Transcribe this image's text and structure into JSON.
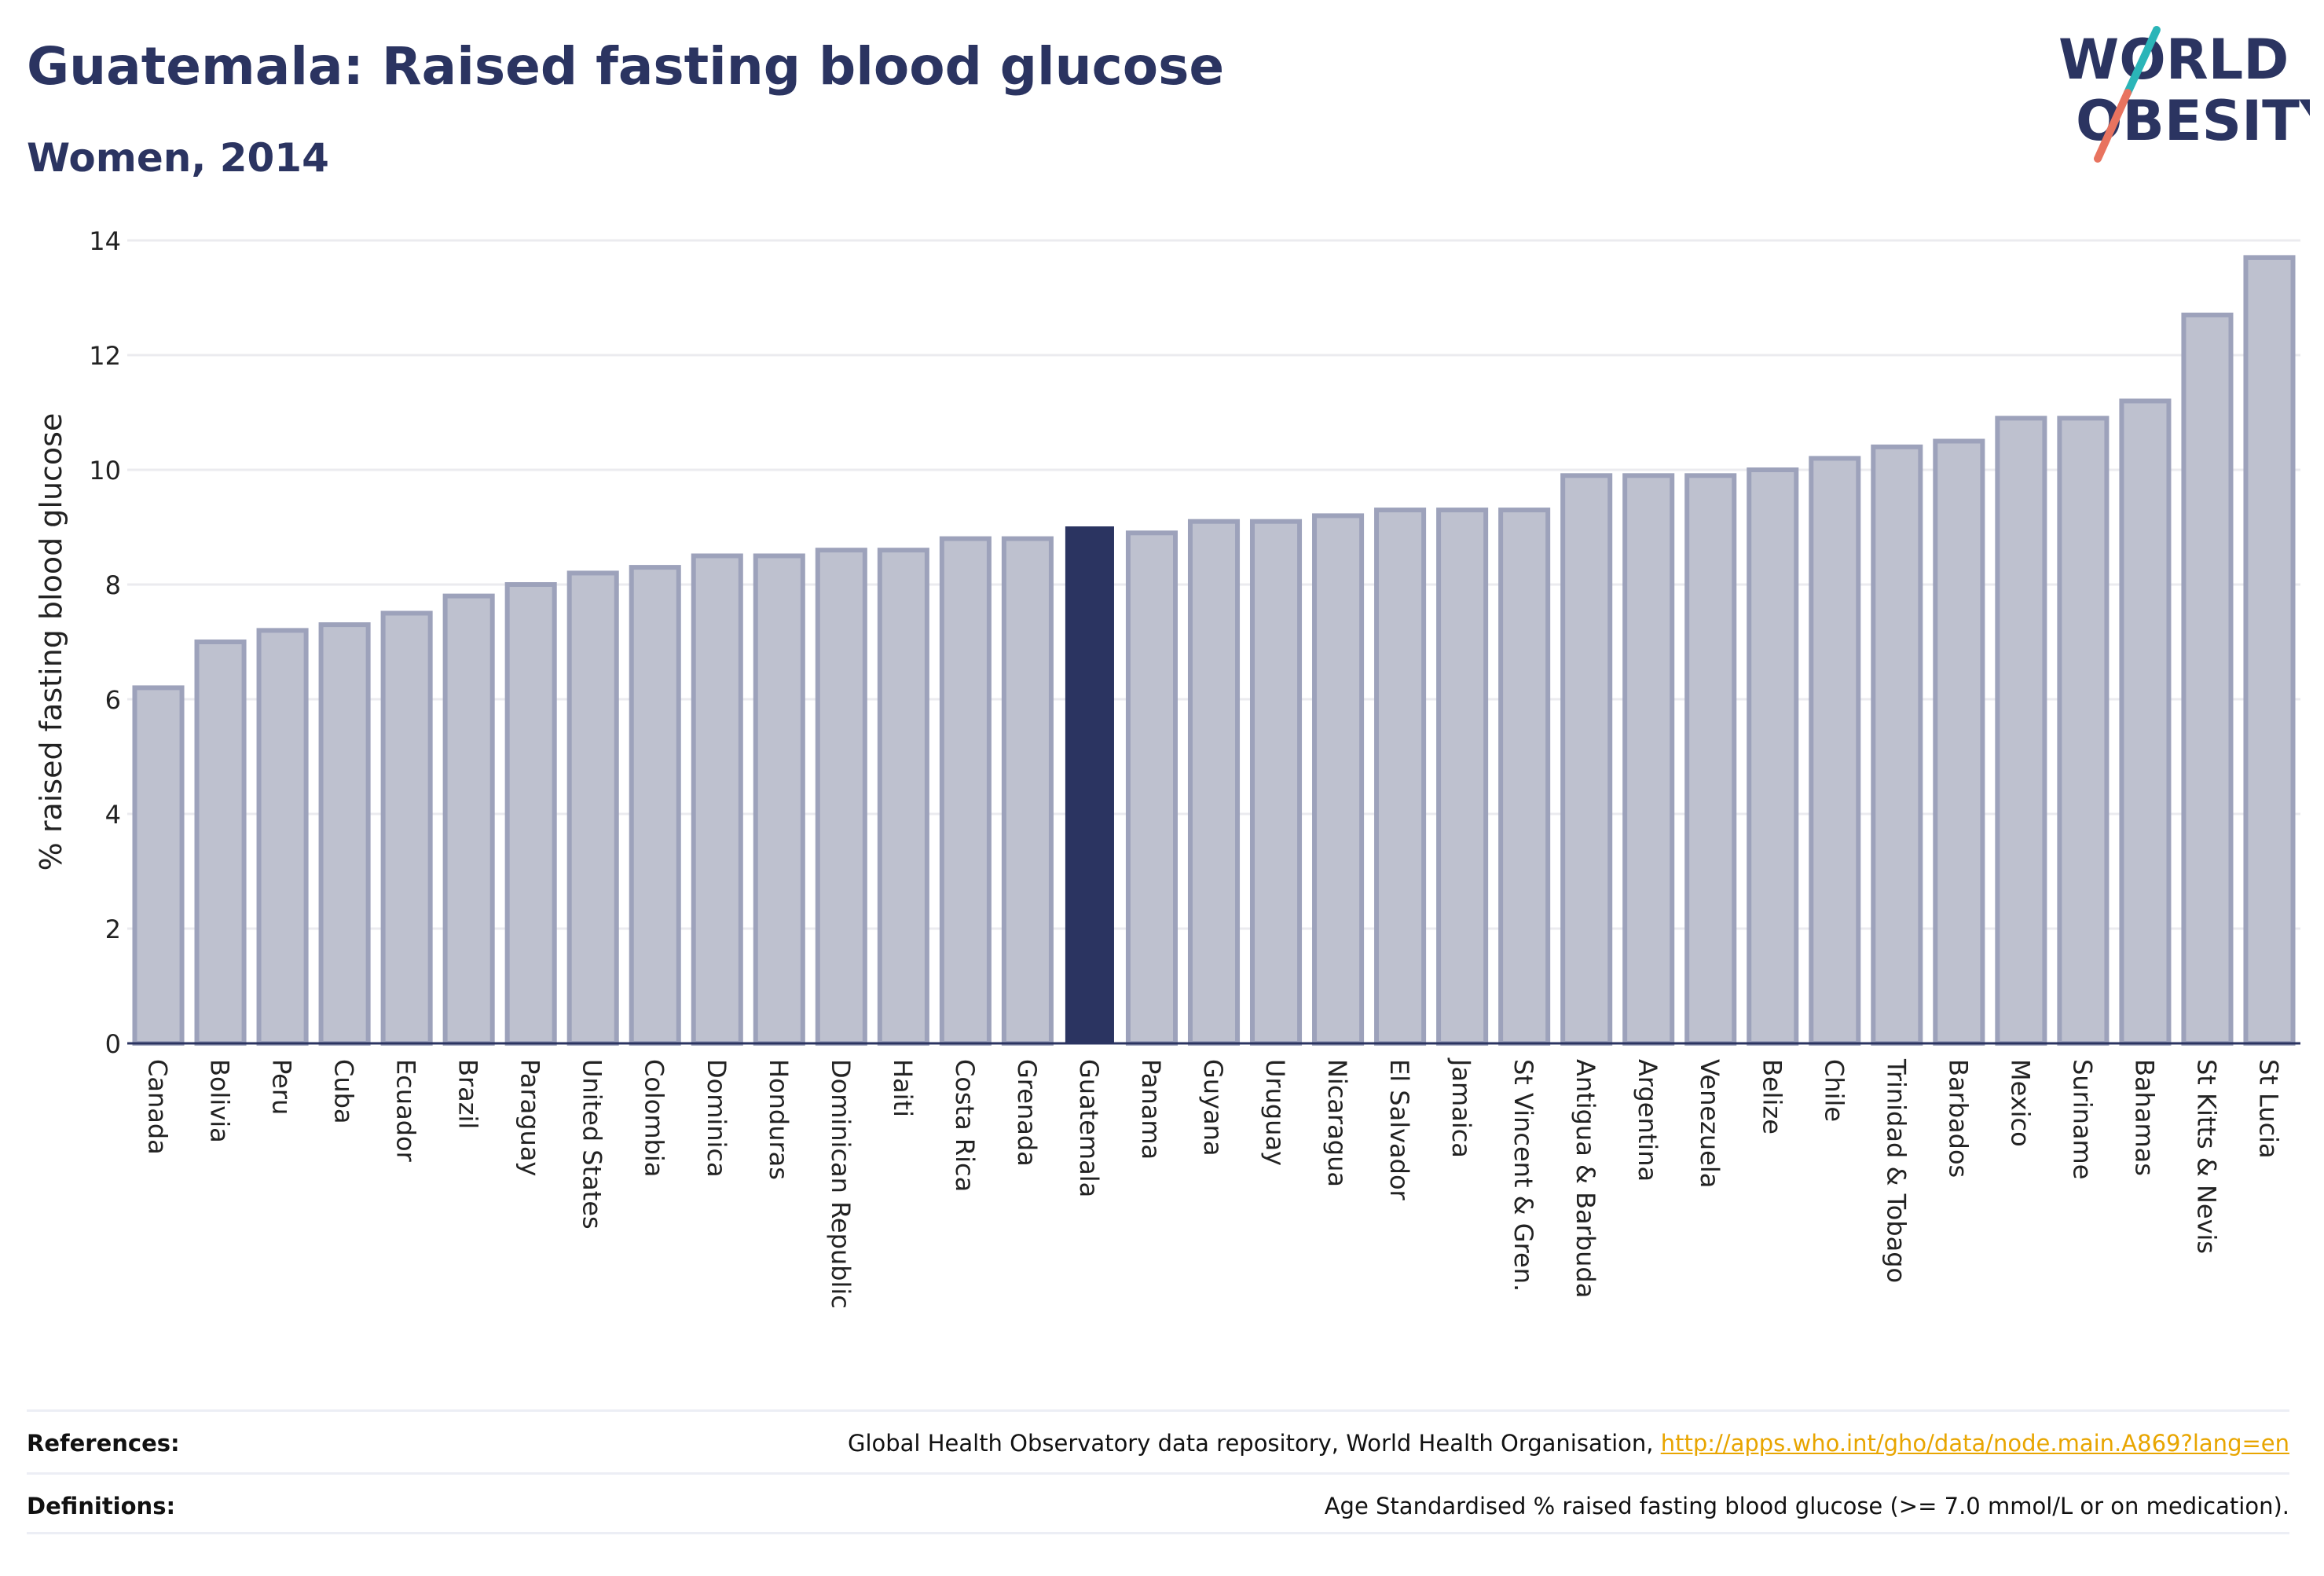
{
  "title": "Guatemala: Raised fasting blood glucose",
  "subtitle": "Women, 2014",
  "logo": {
    "line1": "WORLD",
    "line2": "OBESITY"
  },
  "colors": {
    "title": "#2b3461",
    "bar_fill": "#bec1cf",
    "bar_stroke": "#9da2bb",
    "highlight": "#2b3461",
    "grid": "#ebebef",
    "logo_slash_teal": "#2bb5b8",
    "logo_slash_red": "#e8735f",
    "link": "#e8a500"
  },
  "chart_data": {
    "type": "bar",
    "title": "Guatemala: Raised fasting blood glucose",
    "subtitle": "Women, 2014",
    "xlabel": "",
    "ylabel": "% raised fasting blood glucose",
    "ylim": [
      0,
      14
    ],
    "yticks": [
      0,
      2,
      4,
      6,
      8,
      10,
      12,
      14
    ],
    "grid": true,
    "highlight": "Guatemala",
    "categories": [
      "Canada",
      "Bolivia",
      "Peru",
      "Cuba",
      "Ecuador",
      "Brazil",
      "Paraguay",
      "United States",
      "Colombia",
      "Dominica",
      "Honduras",
      "Dominican Republic",
      "Haiti",
      "Costa Rica",
      "Grenada",
      "Guatemala",
      "Panama",
      "Guyana",
      "Uruguay",
      "Nicaragua",
      "El Salvador",
      "Jamaica",
      "St Vincent & Gren.",
      "Antigua & Barbuda",
      "Argentina",
      "Venezuela",
      "Belize",
      "Chile",
      "Trinidad & Tobago",
      "Barbados",
      "Mexico",
      "Suriname",
      "Bahamas",
      "St Kitts & Nevis",
      "St Lucia"
    ],
    "values": [
      6.2,
      7.0,
      7.2,
      7.3,
      7.5,
      7.8,
      8.0,
      8.2,
      8.3,
      8.5,
      8.5,
      8.6,
      8.6,
      8.8,
      8.8,
      9.0,
      8.9,
      9.1,
      9.1,
      9.2,
      9.3,
      9.3,
      9.3,
      9.9,
      9.9,
      9.9,
      10.0,
      10.2,
      10.4,
      10.5,
      10.9,
      10.9,
      11.2,
      12.7,
      13.7
    ]
  },
  "footer": {
    "references_label": "References:",
    "references_text": "Global Health Observatory data repository, World Health Organisation, ",
    "references_link": "http://apps.who.int/gho/data/node.main.A869?lang=en",
    "definitions_label": "Definitions:",
    "definitions_text": "Age Standardised % raised fasting blood glucose (>= 7.0 mmol/L or on medication)."
  }
}
